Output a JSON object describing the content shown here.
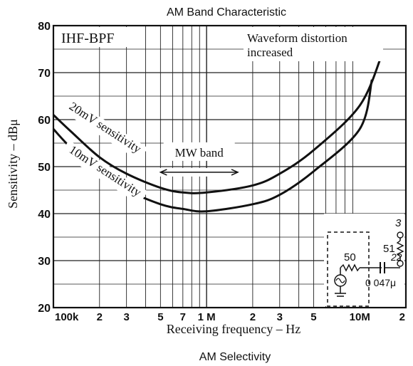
{
  "chart_data": {
    "type": "line",
    "title": "AM Band Characteristic",
    "caption": "AM Selectivity",
    "xlabel": "Receiving frequency – Hz",
    "ylabel": "Sensitivity – dBμ",
    "x_scale": "log",
    "xlim": [
      100000,
      20000000
    ],
    "ylim": [
      20,
      80
    ],
    "grid": true,
    "y_ticks": [
      "80",
      "70",
      "60",
      "50",
      "40",
      "30",
      "20"
    ],
    "x_ticks": [
      {
        "x": 100000,
        "label": "100k"
      },
      {
        "x": 200000,
        "label": "2"
      },
      {
        "x": 300000,
        "label": "3"
      },
      {
        "x": 500000,
        "label": "5"
      },
      {
        "x": 700000,
        "label": "7"
      },
      {
        "x": 1000000,
        "label": "1 M"
      },
      {
        "x": 2000000,
        "label": "2"
      },
      {
        "x": 3000000,
        "label": "3"
      },
      {
        "x": 5000000,
        "label": "5"
      },
      {
        "x": 10000000,
        "label": "10M"
      },
      {
        "x": 20000000,
        "label": "2"
      }
    ],
    "series": [
      {
        "name": "20mV sensitivity",
        "x": [
          100000,
          130000,
          200000,
          300000,
          500000,
          700000,
          1000000,
          2000000,
          3000000,
          5000000,
          10000000,
          14000000
        ],
        "y": [
          61,
          57.5,
          52,
          48.5,
          45.5,
          44.5,
          44.5,
          46,
          48.5,
          53.5,
          63,
          74
        ]
      },
      {
        "name": "10mV sensitivity",
        "x": [
          100000,
          130000,
          200000,
          300000,
          500000,
          700000,
          1000000,
          2000000,
          3000000,
          5000000,
          10000000,
          12000000
        ],
        "y": [
          58,
          54,
          48.5,
          45,
          42,
          41,
          40.5,
          42,
          44,
          49,
          58,
          68.5
        ]
      }
    ],
    "annotations": {
      "box_label": "IHF-BPF",
      "distortion_line1": "Waveform distortion",
      "distortion_line2": "increased",
      "mw_band": "MW band",
      "mw_band_range": [
        500000,
        1600000
      ]
    },
    "inset": {
      "r_source": "50",
      "r_series": "51",
      "r_shunt": "22",
      "capacitor": "0 047μ",
      "terminal": "3"
    }
  }
}
